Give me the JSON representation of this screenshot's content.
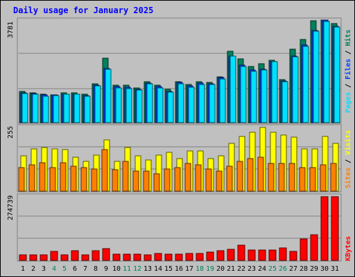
{
  "title": "Daily usage for January 2025",
  "colors": {
    "background": "#C0C0C0",
    "title": "#0000FF",
    "hits": "#00805C",
    "files": "#0040FF",
    "pages": "#00E0FF",
    "visits": "#FFFF00",
    "sites": "#FF8000",
    "kbytes": "#FF0000",
    "weekend": "#00805C",
    "weekday": "#000000"
  },
  "chart_data": [
    {
      "type": "bar",
      "panel": "top",
      "max_label": "3781",
      "ylim": [
        0,
        3781
      ],
      "legend": [
        {
          "label": "Hits",
          "color": "#00805C"
        },
        {
          "label": "Files",
          "color": "#0040FF"
        },
        {
          "label": "Pages",
          "color": "#00E0FF"
        }
      ],
      "categories": [
        "1",
        "2",
        "3",
        "4",
        "5",
        "6",
        "7",
        "8",
        "9",
        "10",
        "11",
        "12",
        "13",
        "14",
        "15",
        "16",
        "17",
        "18",
        "19",
        "20",
        "21",
        "22",
        "23",
        "24",
        "25",
        "26",
        "27",
        "28",
        "29",
        "30",
        "31"
      ],
      "series": [
        {
          "name": "Hits",
          "values": [
            1150,
            1110,
            1050,
            1030,
            1100,
            1110,
            1050,
            1430,
            2380,
            1370,
            1380,
            1280,
            1500,
            1380,
            1220,
            1520,
            1410,
            1510,
            1490,
            1680,
            2630,
            2350,
            2080,
            2170,
            2290,
            1580,
            2700,
            3060,
            3750,
            3781,
            3660
          ]
        },
        {
          "name": "Files",
          "values": [
            1100,
            1080,
            1010,
            1010,
            1060,
            1060,
            1000,
            1390,
            2000,
            1320,
            1300,
            1220,
            1460,
            1330,
            1160,
            1470,
            1350,
            1450,
            1440,
            1650,
            2460,
            2110,
            1930,
            1960,
            2260,
            1530,
            2460,
            2860,
            3400,
            3780,
            3560
          ]
        },
        {
          "name": "Pages",
          "values": [
            1080,
            1050,
            980,
            990,
            1040,
            1040,
            980,
            1350,
            1960,
            1290,
            1260,
            1190,
            1420,
            1290,
            1130,
            1440,
            1310,
            1400,
            1410,
            1620,
            2440,
            2070,
            1900,
            1930,
            2240,
            1500,
            2420,
            2820,
            3370,
            3740,
            3520
          ]
        }
      ]
    },
    {
      "type": "bar",
      "panel": "middle",
      "max_label": "255",
      "ylim": [
        0,
        255
      ],
      "legend": [
        {
          "label": "Visits",
          "color": "#FFFF00"
        },
        {
          "label": "Sites",
          "color": "#FF8000"
        }
      ],
      "categories": [
        "1",
        "2",
        "3",
        "4",
        "5",
        "6",
        "7",
        "8",
        "9",
        "10",
        "11",
        "12",
        "13",
        "14",
        "15",
        "16",
        "17",
        "18",
        "19",
        "20",
        "21",
        "22",
        "23",
        "24",
        "25",
        "26",
        "27",
        "28",
        "29",
        "30",
        "31"
      ],
      "series": [
        {
          "name": "Visits",
          "values": [
            140,
            170,
            175,
            170,
            165,
            135,
            120,
            145,
            205,
            120,
            175,
            140,
            125,
            145,
            155,
            130,
            160,
            160,
            130,
            140,
            190,
            220,
            235,
            255,
            235,
            225,
            215,
            170,
            170,
            220,
            190
          ]
        },
        {
          "name": "Sites",
          "values": [
            95,
            105,
            115,
            95,
            115,
            100,
            95,
            90,
            165,
            85,
            120,
            80,
            80,
            70,
            90,
            95,
            110,
            105,
            90,
            80,
            100,
            120,
            130,
            135,
            110,
            110,
            110,
            95,
            95,
            105,
            110
          ]
        }
      ]
    },
    {
      "type": "bar",
      "panel": "bottom",
      "max_label": "274739",
      "ylim": [
        0,
        274739
      ],
      "legend": [
        {
          "label": "KBytes",
          "color": "#FF0000"
        }
      ],
      "categories": [
        "1",
        "2",
        "3",
        "4",
        "5",
        "6",
        "7",
        "8",
        "9",
        "10",
        "11",
        "12",
        "13",
        "14",
        "15",
        "16",
        "17",
        "18",
        "19",
        "20",
        "21",
        "22",
        "23",
        "24",
        "25",
        "26",
        "27",
        "28",
        "29",
        "30",
        "31"
      ],
      "series": [
        {
          "name": "KBytes",
          "values": [
            24000,
            23000,
            23000,
            40000,
            23000,
            42000,
            25000,
            43000,
            50000,
            26000,
            28000,
            27000,
            23000,
            29000,
            28000,
            27000,
            30000,
            31000,
            35000,
            42000,
            48000,
            66000,
            45000,
            45000,
            46000,
            55000,
            40000,
            93000,
            110000,
            274739,
            274739
          ]
        }
      ]
    }
  ],
  "x_labels": [
    {
      "label": "1",
      "weekend": false
    },
    {
      "label": "2",
      "weekend": false
    },
    {
      "label": "3",
      "weekend": false
    },
    {
      "label": "4",
      "weekend": true
    },
    {
      "label": "5",
      "weekend": true
    },
    {
      "label": "6",
      "weekend": false
    },
    {
      "label": "7",
      "weekend": false
    },
    {
      "label": "8",
      "weekend": false
    },
    {
      "label": "9",
      "weekend": false
    },
    {
      "label": "10",
      "weekend": false
    },
    {
      "label": "11",
      "weekend": true
    },
    {
      "label": "12",
      "weekend": true
    },
    {
      "label": "13",
      "weekend": false
    },
    {
      "label": "14",
      "weekend": false
    },
    {
      "label": "15",
      "weekend": false
    },
    {
      "label": "16",
      "weekend": false
    },
    {
      "label": "17",
      "weekend": false
    },
    {
      "label": "18",
      "weekend": true
    },
    {
      "label": "19",
      "weekend": true
    },
    {
      "label": "20",
      "weekend": false
    },
    {
      "label": "21",
      "weekend": false
    },
    {
      "label": "22",
      "weekend": false
    },
    {
      "label": "23",
      "weekend": false
    },
    {
      "label": "24",
      "weekend": false
    },
    {
      "label": "25",
      "weekend": true
    },
    {
      "label": "26",
      "weekend": true
    },
    {
      "label": "27",
      "weekend": false
    },
    {
      "label": "28",
      "weekend": false
    },
    {
      "label": "29",
      "weekend": false
    },
    {
      "label": "30",
      "weekend": false
    },
    {
      "label": "31",
      "weekend": false
    }
  ]
}
